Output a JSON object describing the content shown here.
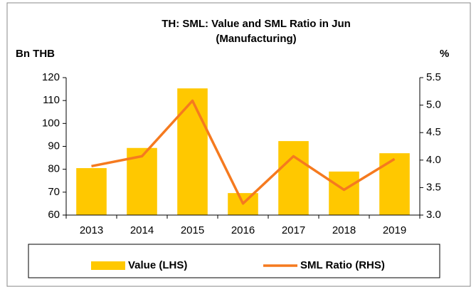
{
  "chart_data": {
    "type": "bar_line",
    "title": [
      "TH: SML: Value and SML Ratio in Jun",
      "(Manufacturing)"
    ],
    "y_label": "Bn THB",
    "y2_label": "%",
    "categories": [
      "2013",
      "2014",
      "2015",
      "2016",
      "2017",
      "2018",
      "2019"
    ],
    "series": [
      {
        "name": "Value (LHS)",
        "type": "bar",
        "color": "#FFC800",
        "values": [
          80.5,
          89.3,
          115.3,
          69.6,
          92.3,
          79,
          87
        ]
      },
      {
        "name": "SML Ratio (RHS)",
        "type": "line",
        "axis": "y2",
        "color": "#F57A1F",
        "values": [
          3.89,
          4.07,
          5.08,
          3.21,
          4.07,
          3.46,
          4.02
        ]
      }
    ],
    "ylim": [
      60,
      120
    ],
    "yticks": [
      60,
      70,
      80,
      90,
      100,
      110,
      120
    ],
    "y2lim": [
      3.0,
      5.5
    ],
    "y2ticks": [
      {
        "value": 3.0,
        "label": "3.0"
      },
      3.5,
      {
        "value": 4.0,
        "label": "4.0"
      },
      4.5,
      {
        "value": 5.0,
        "label": "5.0"
      },
      5.5
    ],
    "legend": "bottom"
  }
}
